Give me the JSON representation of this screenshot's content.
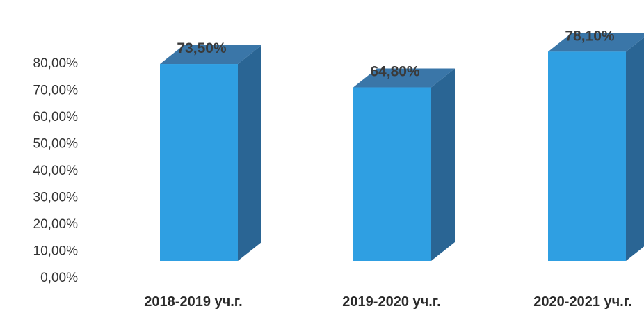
{
  "chart_data": {
    "type": "bar",
    "style": "3d-column",
    "categories": [
      "2018-2019 уч.г.",
      "2019-2020 уч.г.",
      "2020-2021 уч.г."
    ],
    "values": [
      73.5,
      64.8,
      78.1
    ],
    "data_labels": [
      "73,50%",
      "64,80%",
      "78,10%"
    ],
    "y_ticks": [
      "0,00%",
      "10,00%",
      "20,00%",
      "30,00%",
      "40,00%",
      "50,00%",
      "60,00%",
      "70,00%",
      "80,00%"
    ],
    "ylim": [
      0,
      80
    ],
    "grid": false,
    "legend": "none",
    "colors": {
      "front": "#2f9fe2",
      "side": "#2a6594",
      "top": "#3a76a8"
    }
  }
}
